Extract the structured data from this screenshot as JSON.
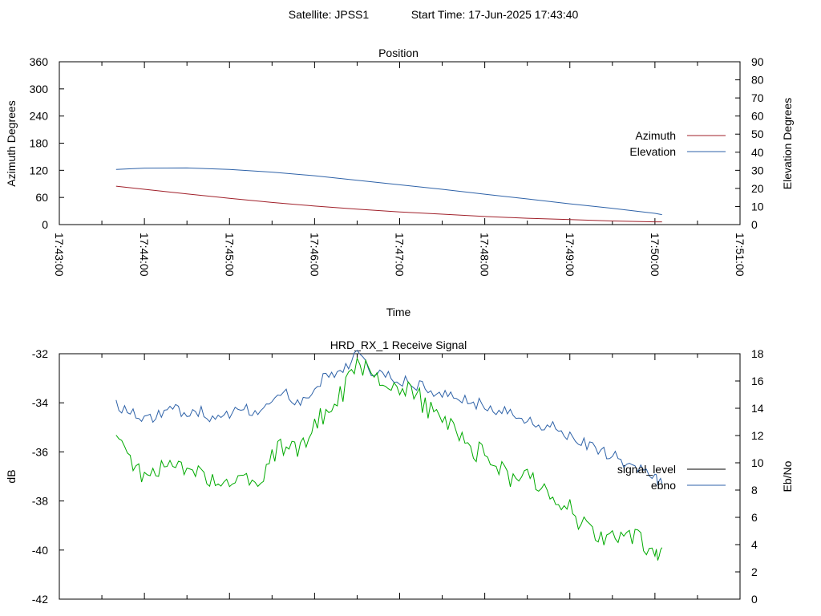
{
  "header": {
    "satellite": "Satellite: JPSS1",
    "start_time": "Start Time: 17-Jun-2025 17:43:40"
  },
  "colors": {
    "azimuth": "#a0202a",
    "elevation": "#2e62a8",
    "signal_level": "#000000",
    "ebno_line": "#2e62a8",
    "ebno_plotted": "#00aa00"
  },
  "chart_data": [
    {
      "type": "line",
      "title": "Position",
      "xlabel": "Time",
      "ylabel": "Azimuth Degrees",
      "y2label": "Elevation Degrees",
      "xlim": [
        "17:43:00",
        "17:51:00"
      ],
      "ylim": [
        0,
        360
      ],
      "y2lim": [
        0,
        90
      ],
      "x_tick_labels": [
        "17:43:00",
        "17:44:00",
        "17:45:00",
        "17:46:00",
        "17:47:00",
        "17:48:00",
        "17:49:00",
        "17:50:00",
        "17:51:00"
      ],
      "y_ticks": [
        0,
        60,
        120,
        180,
        240,
        300,
        360
      ],
      "y2_ticks": [
        0,
        10,
        20,
        30,
        40,
        50,
        60,
        70,
        80,
        90
      ],
      "grid": false,
      "legend_position": "right",
      "series": [
        {
          "name": "Azimuth",
          "axis": "left",
          "x": [
            "17:43:40",
            "17:44:00",
            "17:44:30",
            "17:45:00",
            "17:45:30",
            "17:46:00",
            "17:46:30",
            "17:47:00",
            "17:47:30",
            "17:48:00",
            "17:48:30",
            "17:49:00",
            "17:49:30",
            "17:50:00",
            "17:50:05"
          ],
          "values": [
            85,
            78,
            68,
            58,
            49,
            41,
            34,
            28,
            23,
            18,
            14,
            11,
            8,
            6,
            6
          ]
        },
        {
          "name": "Elevation",
          "axis": "right",
          "x": [
            "17:43:40",
            "17:44:00",
            "17:44:30",
            "17:45:00",
            "17:45:30",
            "17:46:00",
            "17:46:30",
            "17:47:00",
            "17:47:30",
            "17:48:00",
            "17:48:30",
            "17:49:00",
            "17:49:30",
            "17:50:00",
            "17:50:05"
          ],
          "values": [
            30.5,
            31.2,
            31.3,
            30.5,
            29.0,
            27.0,
            24.5,
            22.0,
            19.5,
            16.8,
            14.2,
            11.5,
            9.0,
            6.2,
            5.5
          ]
        }
      ]
    },
    {
      "type": "line",
      "title": "HRD_RX_1 Receive Signal",
      "xlabel": "",
      "ylabel": "dB",
      "y2label": "Eb/No",
      "xlim": [
        "17:43:00",
        "17:51:00"
      ],
      "ylim": [
        -42,
        -32
      ],
      "y2lim": [
        0,
        18
      ],
      "x_tick_labels": [],
      "y_ticks": [
        -42,
        -40,
        -38,
        -36,
        -34,
        -32
      ],
      "y2_ticks": [
        0,
        2,
        4,
        6,
        8,
        10,
        12,
        14,
        16,
        18
      ],
      "grid": false,
      "legend_position": "right",
      "series": [
        {
          "name": "signal_level",
          "axis": "left",
          "x": [],
          "values": []
        },
        {
          "name": "ebno",
          "axis": "right",
          "x": [
            "17:43:40",
            "17:43:50",
            "17:44:00",
            "17:44:10",
            "17:44:20",
            "17:44:30",
            "17:44:40",
            "17:44:50",
            "17:45:00",
            "17:45:10",
            "17:45:20",
            "17:45:30",
            "17:45:40",
            "17:45:50",
            "17:46:00",
            "17:46:10",
            "17:46:20",
            "17:46:30",
            "17:46:40",
            "17:46:50",
            "17:47:00",
            "17:47:10",
            "17:47:20",
            "17:47:30",
            "17:47:40",
            "17:47:50",
            "17:48:00",
            "17:48:10",
            "17:48:20",
            "17:48:30",
            "17:48:40",
            "17:48:50",
            "17:49:00",
            "17:49:10",
            "17:49:20",
            "17:49:30",
            "17:49:40",
            "17:49:50",
            "17:50:00",
            "17:50:05"
          ],
          "values": [
            14.2,
            13.8,
            13.2,
            13.5,
            14.0,
            13.6,
            13.8,
            13.2,
            13.5,
            14.0,
            13.5,
            14.2,
            15.0,
            14.5,
            15.5,
            16.5,
            17.0,
            17.8,
            16.8,
            16.5,
            16.0,
            15.8,
            15.5,
            15.0,
            14.8,
            14.5,
            14.2,
            13.8,
            13.5,
            13.0,
            12.5,
            12.8,
            12.0,
            11.5,
            11.0,
            10.5,
            10.0,
            9.5,
            8.8,
            8.5
          ]
        },
        {
          "name": "",
          "axis": "left",
          "x": [
            "17:43:40",
            "17:43:50",
            "17:44:00",
            "17:44:10",
            "17:44:20",
            "17:44:30",
            "17:44:40",
            "17:44:50",
            "17:45:00",
            "17:45:10",
            "17:45:20",
            "17:45:30",
            "17:45:40",
            "17:45:50",
            "17:46:00",
            "17:46:10",
            "17:46:20",
            "17:46:30",
            "17:46:40",
            "17:46:50",
            "17:47:00",
            "17:47:10",
            "17:47:20",
            "17:47:30",
            "17:47:40",
            "17:47:50",
            "17:48:00",
            "17:48:10",
            "17:48:20",
            "17:48:30",
            "17:48:40",
            "17:48:50",
            "17:49:00",
            "17:49:10",
            "17:49:20",
            "17:49:30",
            "17:49:40",
            "17:49:50",
            "17:50:00",
            "17:50:05"
          ],
          "values": [
            -35.6,
            -36.3,
            -37.2,
            -36.8,
            -36.4,
            -37.0,
            -36.6,
            -37.5,
            -37.2,
            -36.9,
            -37.4,
            -36.2,
            -35.6,
            -35.8,
            -34.9,
            -34.2,
            -33.6,
            -32.2,
            -33.0,
            -33.4,
            -33.5,
            -33.6,
            -34.2,
            -34.8,
            -35.2,
            -35.8,
            -36.2,
            -36.6,
            -37.1,
            -37.0,
            -37.5,
            -37.9,
            -38.3,
            -39.0,
            -39.5,
            -39.6,
            -39.2,
            -39.6,
            -40.2,
            -39.9
          ]
        }
      ]
    }
  ]
}
